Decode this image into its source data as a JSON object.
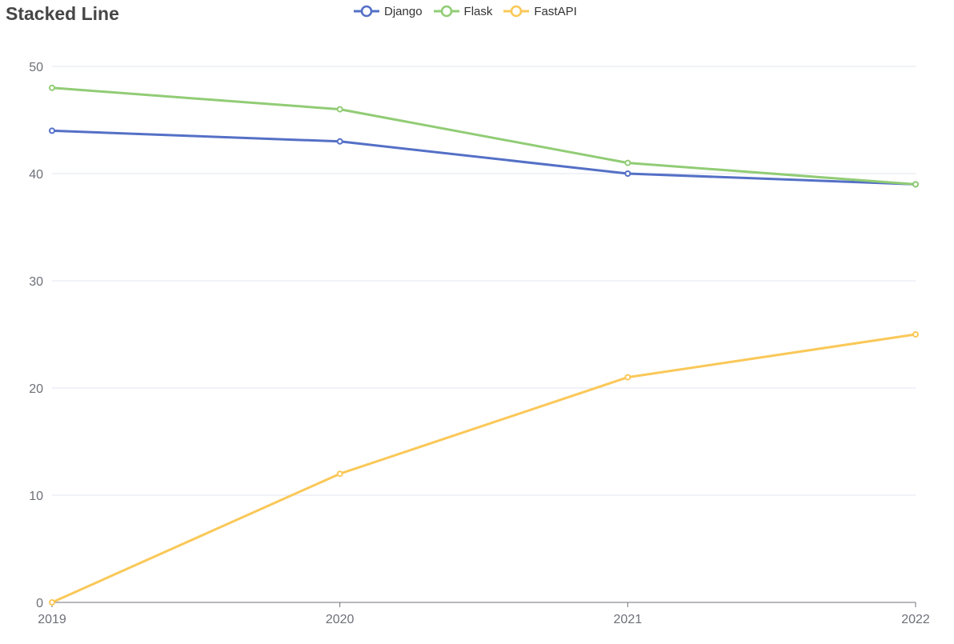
{
  "chart_data": {
    "type": "line",
    "title": "Stacked Line",
    "categories": [
      "2019",
      "2020",
      "2021",
      "2022"
    ],
    "series": [
      {
        "name": "Django",
        "color": "#5470c6",
        "values": [
          44,
          43,
          40,
          39
        ]
      },
      {
        "name": "Flask",
        "color": "#91cc75",
        "values": [
          48,
          46,
          41,
          39
        ]
      },
      {
        "name": "FastAPI",
        "color": "#fac858",
        "values": [
          0,
          12,
          21,
          25
        ]
      }
    ],
    "ylim": [
      0,
      50
    ],
    "yticks": [
      0,
      10,
      20,
      30,
      40,
      50
    ],
    "grid": true,
    "legend_position": "top-center",
    "xlabel": "",
    "ylabel": ""
  }
}
